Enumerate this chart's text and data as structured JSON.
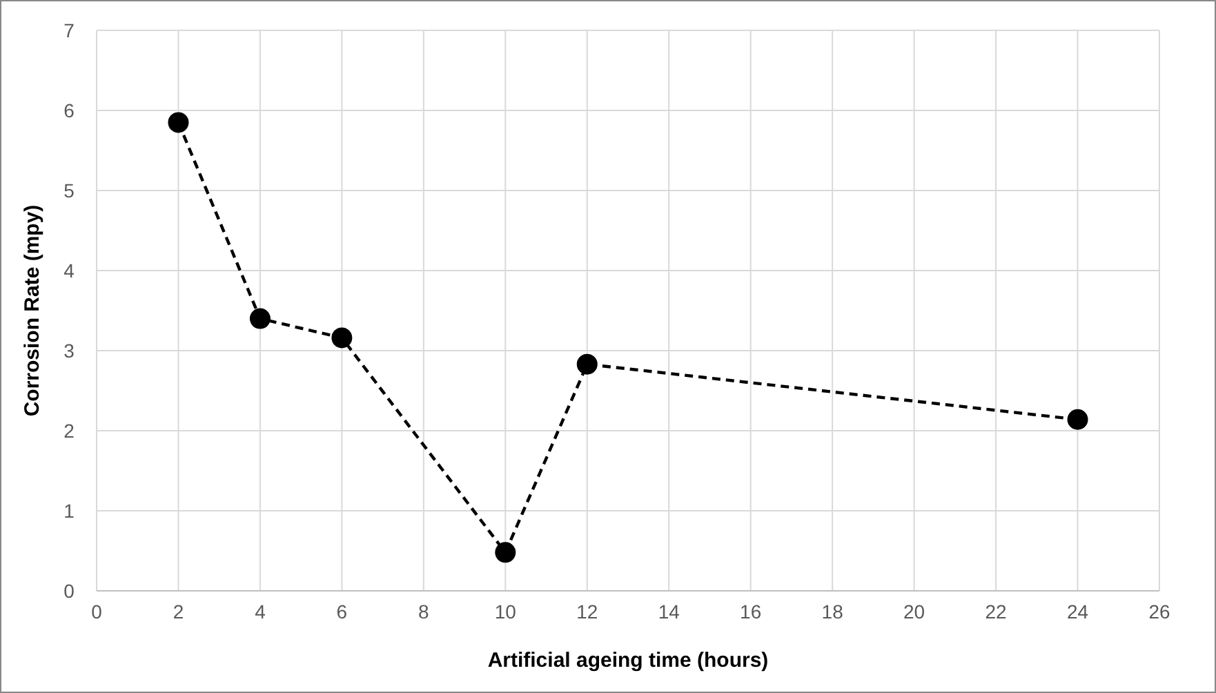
{
  "chart_data": {
    "type": "line",
    "xlabel": "Artificial ageing time (hours)",
    "ylabel": "Corrosion Rate (mpy)",
    "x": [
      2,
      4,
      6,
      10,
      12,
      24
    ],
    "series": [
      {
        "color": "#000000",
        "values": [
          5.85,
          3.4,
          3.16,
          0.48,
          2.83,
          2.14
        ]
      }
    ],
    "xlim": [
      0,
      26
    ],
    "xticks": [
      0,
      2,
      4,
      6,
      8,
      10,
      12,
      14,
      16,
      18,
      20,
      22,
      24,
      26
    ],
    "ylim": [
      0,
      7
    ],
    "yticks": [
      0,
      1,
      2,
      3,
      4,
      5,
      6,
      7
    ],
    "grid": true,
    "marker": "circle",
    "line_style": "dashed"
  }
}
